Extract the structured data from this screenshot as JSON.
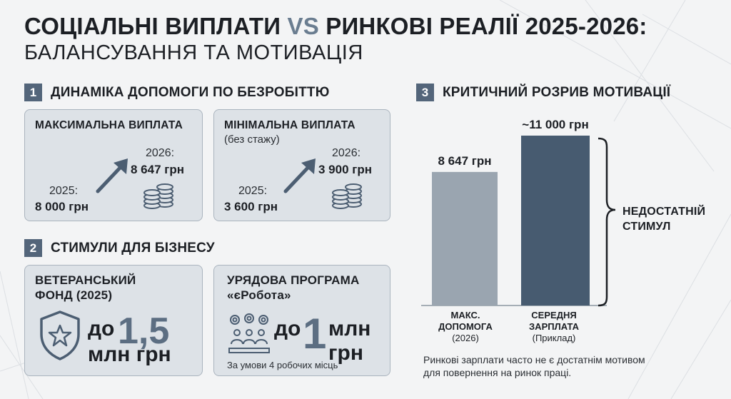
{
  "header": {
    "title_part1": "СОЦІАЛЬНІ ВИПЛАТИ",
    "title_vs": "VS",
    "title_part2": "РИНКОВІ РЕАЛІЇ 2025-2026:",
    "subtitle": "БАЛАНСУВАННЯ ТА МОТИВАЦІЯ"
  },
  "section1": {
    "number": "1",
    "title": "ДИНАМІКА ДОПОМОГИ ПО БЕЗРОБІТТЮ",
    "max": {
      "title": "МАКСИМАЛЬНА ВИПЛАТА",
      "year_from": "2025:",
      "value_from": "8 000 грн",
      "year_to": "2026:",
      "value_to": "8 647 грн"
    },
    "min": {
      "title": "МІНІМАЛЬНА ВИПЛАТА",
      "subtitle": "(без стажу)",
      "year_from": "2025:",
      "value_from": "3 600 грн",
      "year_to": "2026:",
      "value_to": "3 900 грн"
    }
  },
  "section2": {
    "number": "2",
    "title": "СТИМУЛИ ДЛЯ БІЗНЕСУ",
    "veteran": {
      "title_line1": "ВЕТЕРАНСЬКИЙ",
      "title_line2": "ФОНД (2025)",
      "prefix": "до",
      "amount": "1,5",
      "unit": "млн грн"
    },
    "erobota": {
      "title_line1": "УРЯДОВА ПРОГРАМА",
      "title_line2": "«єРобота»",
      "prefix": "до",
      "amount": "1",
      "unit_line1": "млн",
      "unit_line2": "грн",
      "note": "За умови 4 робочих місць"
    }
  },
  "section3": {
    "number": "3",
    "title": "КРИТИЧНИЙ РОЗРИВ МОТИВАЦІЇ",
    "brace_label_line1": "НЕДОСТАТНІЙ",
    "brace_label_line2": "СТИМУЛ",
    "footnote_line1": "Ринкові зарплати часто не є достатнім мотивом",
    "footnote_line2": "для повернення на ринок праці."
  },
  "chart_data": {
    "type": "bar",
    "categories": [
      "МАКС. ДОПОМОГА (2026)",
      "СЕРЕДНЯ ЗАРПЛАТА (Приклад)"
    ],
    "values": [
      8647,
      11000
    ],
    "data_labels": [
      "8 647 грн",
      "~11 000 грн"
    ],
    "colors": [
      "#9aa5b0",
      "#475b70"
    ],
    "bars": [
      {
        "label_line1": "МАКС.",
        "label_line2": "ДОПОМОГА",
        "label_sub": "(2026)"
      },
      {
        "label_line1": "СЕРЕДНЯ",
        "label_line2": "ЗАРПЛАТА",
        "label_sub": "(Приклад)"
      }
    ]
  },
  "colors": {
    "accent": "#53657a",
    "card_bg": "#dde2e7",
    "bar_light": "#9aa5b0",
    "bar_dark": "#475b70"
  },
  "icons": {
    "arrow": "arrow-up-right-icon",
    "coins": "coins-stack-icon",
    "shield": "shield-star-icon",
    "team": "team-gears-icon",
    "brace": "curly-brace-icon"
  }
}
